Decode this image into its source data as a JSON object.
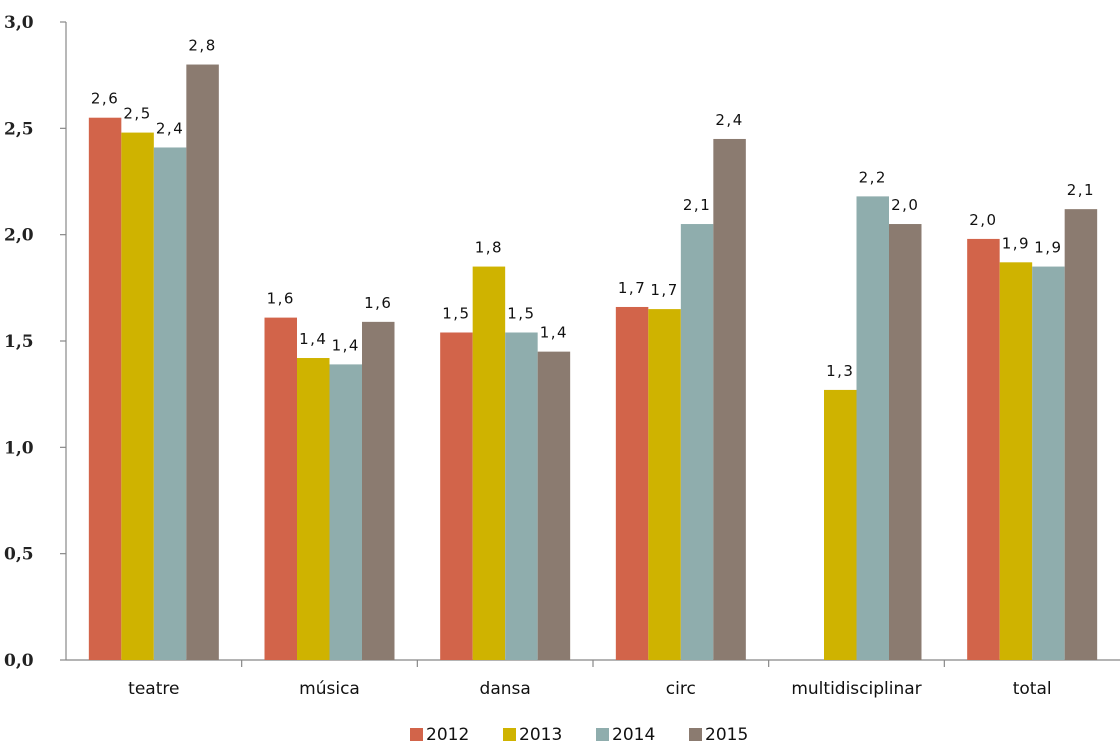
{
  "chart_data": {
    "type": "bar",
    "title": "",
    "xlabel": "",
    "ylabel": "",
    "ylim": [
      0,
      3
    ],
    "yticks": [
      "0,0",
      "0,5",
      "1,0",
      "1,5",
      "2,0",
      "2,5",
      "3,0"
    ],
    "categories": [
      "teatre",
      "música",
      "dansa",
      "circ",
      "multidisciplinar",
      "total"
    ],
    "grid": false,
    "legend_position": "bottom",
    "series": [
      {
        "name": "2012",
        "color": "#d2644a",
        "values": [
          2.55,
          1.61,
          1.54,
          1.66,
          null,
          1.98
        ],
        "labels": [
          "2,6",
          "1,6",
          "1,5",
          "1,7",
          "",
          "2,0"
        ]
      },
      {
        "name": "2013",
        "color": "#cfb300",
        "values": [
          2.48,
          1.42,
          1.85,
          1.65,
          1.27,
          1.87
        ],
        "labels": [
          "2,5",
          "1,4",
          "1,8",
          "1,7",
          "1,3",
          "1,9"
        ]
      },
      {
        "name": "2014",
        "color": "#8fadad",
        "values": [
          2.41,
          1.39,
          1.54,
          2.05,
          2.18,
          1.85
        ],
        "labels": [
          "2,4",
          "1,4",
          "1,5",
          "2,1",
          "2,2",
          "1,9"
        ]
      },
      {
        "name": "2015",
        "color": "#8b7b70",
        "values": [
          2.8,
          1.59,
          1.45,
          2.45,
          2.05,
          2.12
        ],
        "labels": [
          "2,8",
          "1,6",
          "1,4",
          "2,4",
          "2,0",
          "2,1"
        ]
      }
    ]
  }
}
